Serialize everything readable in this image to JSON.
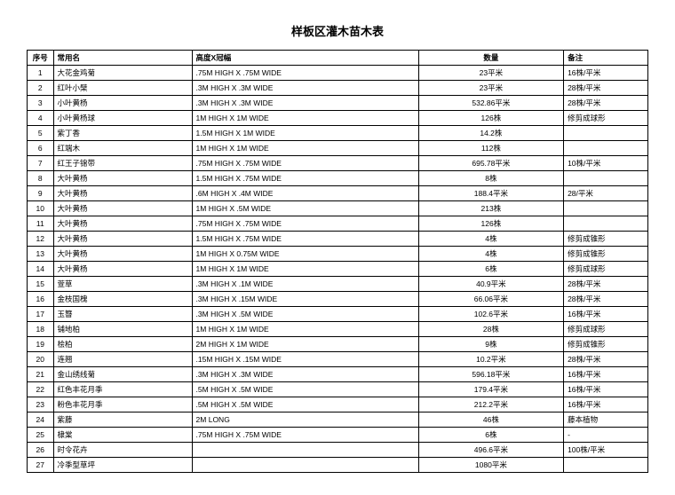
{
  "title": "样板区灌木苗木表",
  "columns": {
    "seq": "序号",
    "name": "常用名",
    "spec": "高度X冠幅",
    "qty": "数量",
    "note": "备注"
  },
  "rows": [
    {
      "seq": "1",
      "name": "大花金鸡菊",
      "spec": ".75M HIGH X .75M WIDE",
      "qty": "23平米",
      "note": "16株/平米"
    },
    {
      "seq": "2",
      "name": "红叶小檗",
      "spec": ".3M HIGH X .3M WIDE",
      "qty": "23平米",
      "note": "28株/平米"
    },
    {
      "seq": "3",
      "name": "小叶黄杨",
      "spec": ".3M HIGH X .3M WIDE",
      "qty": "532.86平米",
      "note": "28株/平米"
    },
    {
      "seq": "4",
      "name": "小叶黄杨球",
      "spec": "1M HIGH X 1M WIDE",
      "qty": "126株",
      "note": "修剪成球形"
    },
    {
      "seq": "5",
      "name": "紫丁香",
      "spec": "1.5M HIGH X 1M WIDE",
      "qty": "14.2株",
      "note": ""
    },
    {
      "seq": "6",
      "name": "红端木",
      "spec": "1M HIGH X 1M WIDE",
      "qty": "112株",
      "note": ""
    },
    {
      "seq": "7",
      "name": "红王子锦带",
      "spec": ".75M HIGH X .75M WIDE",
      "qty": "695.78平米",
      "note": "10株/平米"
    },
    {
      "seq": "8",
      "name": "大叶黄杨",
      "spec": "1.5M HIGH X .75M WIDE",
      "qty": "8株",
      "note": ""
    },
    {
      "seq": "9",
      "name": "大叶黄杨",
      "spec": ".6M HIGH X .4M WIDE",
      "qty": "188.4平米",
      "note": "28/平米"
    },
    {
      "seq": "10",
      "name": "大叶黄杨",
      "spec": "1M HIGH X .5M WIDE",
      "qty": "213株",
      "note": ""
    },
    {
      "seq": "11",
      "name": "大叶黄杨",
      "spec": ".75M HIGH X .75M WIDE",
      "qty": "126株",
      "note": ""
    },
    {
      "seq": "12",
      "name": "大叶黄杨",
      "spec": "1.5M HIGH X .75M WIDE",
      "qty": "4株",
      "note": "修剪成锥形"
    },
    {
      "seq": "13",
      "name": "大叶黄杨",
      "spec": "1M HIGH X 0.75M WIDE",
      "qty": "4株",
      "note": "修剪成锥形"
    },
    {
      "seq": "14",
      "name": "大叶黄杨",
      "spec": "1M HIGH X 1M WIDE",
      "qty": "6株",
      "note": "修剪成球形"
    },
    {
      "seq": "15",
      "name": "萱草",
      "spec": ".3M HIGH X .1M WIDE",
      "qty": "40.9平米",
      "note": "28株/平米"
    },
    {
      "seq": "16",
      "name": "金枝国槐",
      "spec": ".3M HIGH X .15M WIDE",
      "qty": "66.06平米",
      "note": "28株/平米"
    },
    {
      "seq": "17",
      "name": "玉簪",
      "spec": ".3M HIGH X .5M WIDE",
      "qty": "102.6平米",
      "note": "16株/平米"
    },
    {
      "seq": "18",
      "name": "铺地柏",
      "spec": "1M HIGH X 1M WIDE",
      "qty": "28株",
      "note": "修剪成球形"
    },
    {
      "seq": "19",
      "name": "桧柏",
      "spec": "2M HIGH X 1M WIDE",
      "qty": "9株",
      "note": "修剪成锥形"
    },
    {
      "seq": "20",
      "name": "连翘",
      "spec": ".15M HIGH X .15M WIDE",
      "qty": "10.2平米",
      "note": "28株/平米"
    },
    {
      "seq": "21",
      "name": "金山绣线菊",
      "spec": ".3M HIGH X .3M WIDE",
      "qty": "596.18平米",
      "note": "16株/平米"
    },
    {
      "seq": "22",
      "name": "红色丰花月季",
      "spec": ".5M HIGH X .5M WIDE",
      "qty": "179.4平米",
      "note": "16株/平米"
    },
    {
      "seq": "23",
      "name": "粉色丰花月季",
      "spec": ".5M HIGH X .5M WIDE",
      "qty": "212.2平米",
      "note": "16株/平米"
    },
    {
      "seq": "24",
      "name": "紫藤",
      "spec": "2M LONG",
      "qty": "46株",
      "note": "藤本植物"
    },
    {
      "seq": "25",
      "name": "棣棠",
      "spec": ".75M HIGH X .75M WIDE",
      "qty": "6株",
      "note": "-"
    },
    {
      "seq": "26",
      "name": "时令花卉",
      "spec": "",
      "qty": "496.6平米",
      "note": "100株/平米"
    },
    {
      "seq": "27",
      "name": "冷季型草坪",
      "spec": "",
      "qty": "1080平米",
      "note": ""
    }
  ]
}
